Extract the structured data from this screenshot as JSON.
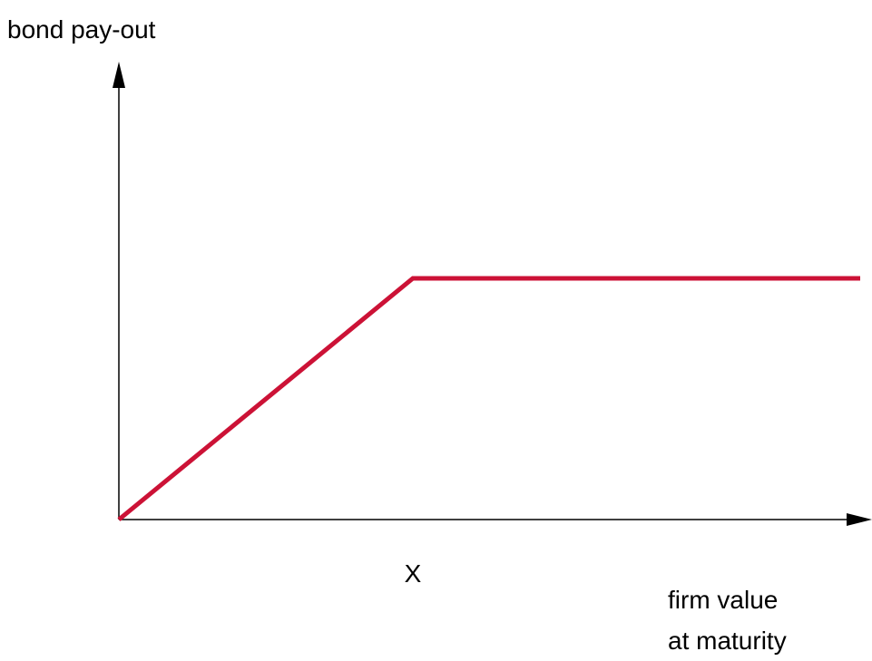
{
  "axes": {
    "y_label": "bond pay-out",
    "x_label": [
      "firm value",
      "at maturity"
    ]
  },
  "annotations": {
    "strike": "X"
  }
}
